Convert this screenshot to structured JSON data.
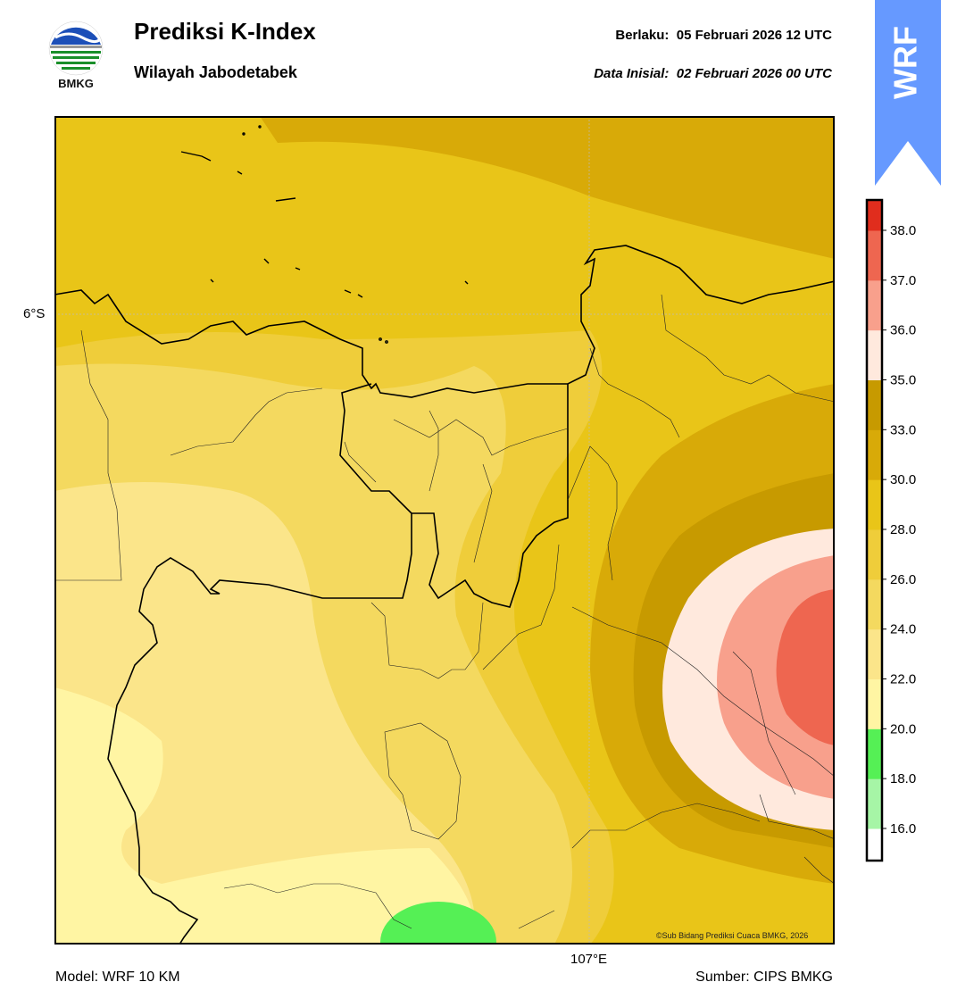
{
  "header": {
    "title": "Prediksi K-Index",
    "region": "Wilayah Jabodetabek",
    "valid_label": "Berlaku:",
    "valid_value": "05 Februari 2026 12 UTC",
    "init_label": "Data Inisial:",
    "init_value": "02 Februari 2026 00 UTC"
  },
  "logo": {
    "text": "BMKG",
    "icon": "bmkg-logo-icon"
  },
  "badge": {
    "text": "WRF",
    "color": "#6699ff"
  },
  "map": {
    "lat_label": "6°S",
    "lon_label": "107°E",
    "credit": "©Sub Bidang Prediksi Cuaca BMKG, 2026"
  },
  "footer": {
    "model": "Model: WRF 10 KM",
    "source": "Sumber: CIPS BMKG"
  },
  "colorbar": {
    "ticks": [
      "16.0",
      "18.0",
      "20.0",
      "22.0",
      "24.0",
      "26.0",
      "28.0",
      "30.0",
      "33.0",
      "35.0",
      "36.0",
      "37.0",
      "38.0"
    ],
    "colors": [
      "#ffffff",
      "#a6f5a6",
      "#55f055",
      "#fff5a3",
      "#fbe58a",
      "#f4d95f",
      "#efcd3a",
      "#e9c518",
      "#d8aa08",
      "#c79a00",
      "#ffe9dd",
      "#f8a08c",
      "#ee6650",
      "#e02d1d"
    ]
  }
}
